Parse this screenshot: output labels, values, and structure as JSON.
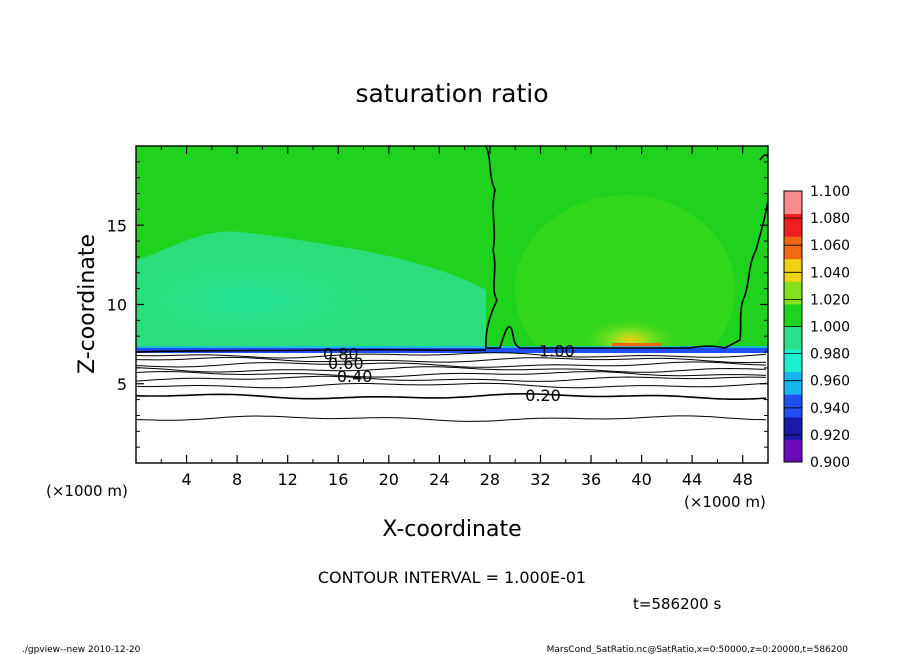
{
  "chart_data": {
    "type": "heatmap",
    "title": "saturation ratio",
    "xlabel": "X-coordinate",
    "ylabel": "Z-coordinate",
    "x_unit": "(×1000 m)",
    "y_unit": "(×1000 m)",
    "xlim": [
      0,
      50
    ],
    "ylim": [
      0,
      20
    ],
    "x_ticks": [
      4,
      8,
      12,
      16,
      20,
      24,
      28,
      32,
      36,
      40,
      44,
      48
    ],
    "y_ticks": [
      5,
      10,
      15
    ],
    "colorbar": {
      "levels": [
        0.9,
        0.92,
        0.94,
        0.96,
        0.98,
        1.0,
        1.02,
        1.04,
        1.06,
        1.08,
        1.1
      ],
      "labels": [
        "0.900",
        "0.920",
        "0.940",
        "0.960",
        "0.980",
        "1.000",
        "1.020",
        "1.040",
        "1.060",
        "1.080",
        "1.100"
      ],
      "colors": [
        "#6a0ab8",
        "#1a1aa8",
        "#1f4ff0",
        "#19b4f0",
        "#1ef0cf",
        "#2ee08c",
        "#1ed21e",
        "#82e01e",
        "#f0d214",
        "#f06a14",
        "#f01e1e",
        "#ff8a8a"
      ]
    },
    "contour_labels": [
      {
        "text": "1.00",
        "x": 33.3,
        "z": 7.1
      },
      {
        "text": "0.80",
        "x": 16.2,
        "z": 6.9
      },
      {
        "text": "0.60",
        "x": 16.6,
        "z": 6.3
      },
      {
        "text": "0.40",
        "x": 17.3,
        "z": 5.5
      },
      {
        "text": "0.20",
        "x": 32.2,
        "z": 4.3
      }
    ],
    "contour_lines_z": [
      2.8,
      4.2,
      4.9,
      5.3,
      5.6,
      5.9,
      6.2,
      6.5,
      6.8
    ],
    "saturation_level_z": 7.0
  },
  "annotations": {
    "contour_interval": "CONTOUR INTERVAL = 1.000E-01",
    "time": "t=586200 s",
    "footer_left": "./gpview--new  2010-12-20",
    "footer_right": "MarsCond_SatRatio.nc@SatRatio,x=0:50000,z=0:20000,t=586200"
  }
}
